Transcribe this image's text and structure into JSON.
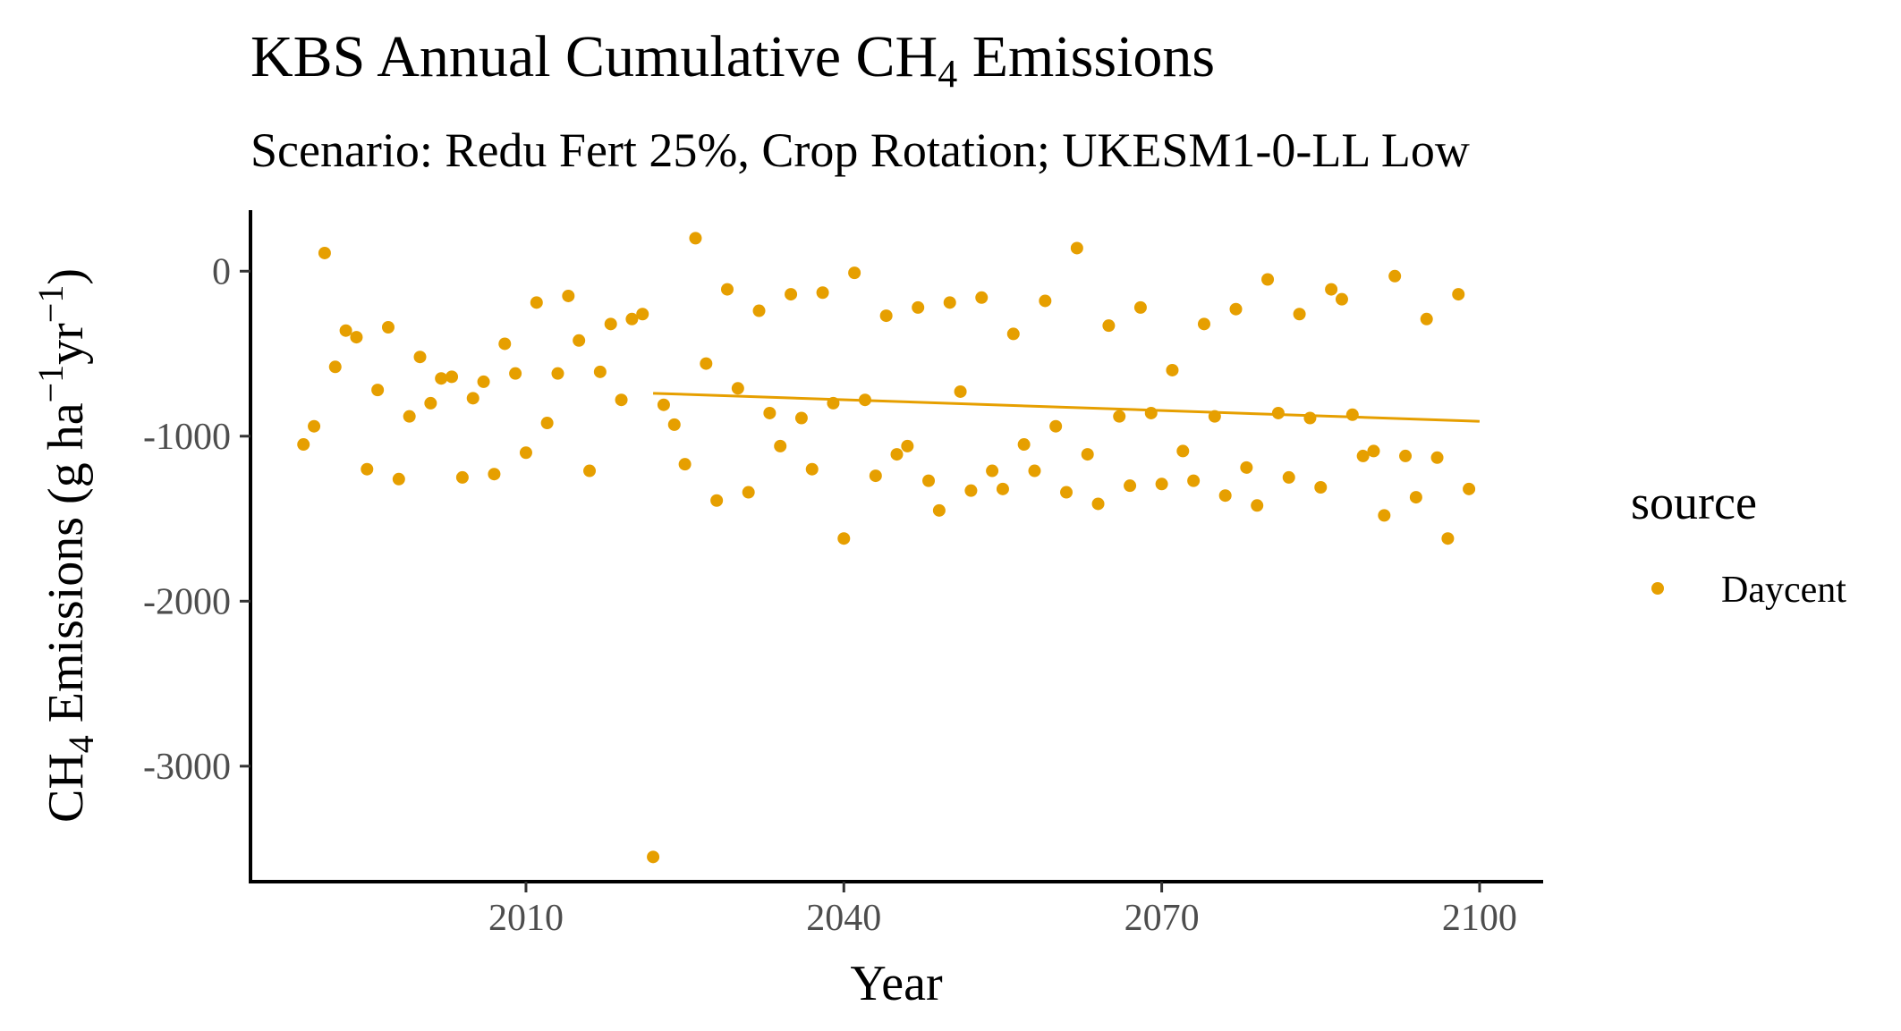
{
  "chart_data": {
    "type": "scatter",
    "title": "KBS Annual Cumulative CH",
    "title_sub": "4",
    "title_suffix": " Emissions",
    "subtitle": "Scenario: Redu Fert 25%, Crop Rotation; UKESM1-0-LL Low",
    "xlabel": "Year",
    "ylabel": {
      "ch": "CH",
      "sub4": "4",
      "mid": " Emissions (g ha",
      "sup1": "−1",
      "yr": "yr",
      "sup2": "−1",
      "close": ")"
    },
    "x_ticks": [
      2010,
      2040,
      2070,
      2100
    ],
    "y_ticks": [
      0,
      -1000,
      -2000,
      -3000
    ],
    "y_tick_labels": [
      "0",
      "-1000",
      "-2000",
      "-3000"
    ],
    "xlim": [
      1984,
      2106
    ],
    "ylim": [
      -3700,
      370
    ],
    "legend": {
      "title": "source",
      "placement": "right",
      "items": [
        {
          "label": "Daycent",
          "color": "#E69F00"
        }
      ]
    },
    "series": [
      {
        "name": "Daycent",
        "color": "#E69F00",
        "x": [
          1989,
          1990,
          1991,
          1992,
          1993,
          1994,
          1995,
          1996,
          1997,
          1998,
          1999,
          2000,
          2001,
          2002,
          2003,
          2004,
          2005,
          2006,
          2007,
          2008,
          2009,
          2010,
          2011,
          2012,
          2013,
          2014,
          2015,
          2016,
          2017,
          2018,
          2019,
          2020,
          2021,
          2022,
          2023,
          2024,
          2025,
          2026,
          2027,
          2028,
          2029,
          2030,
          2031,
          2032,
          2033,
          2034,
          2035,
          2036,
          2037,
          2038,
          2039,
          2040,
          2041,
          2042,
          2043,
          2044,
          2045,
          2046,
          2047,
          2048,
          2049,
          2050,
          2051,
          2052,
          2053,
          2054,
          2055,
          2056,
          2057,
          2058,
          2059,
          2060,
          2061,
          2062,
          2063,
          2064,
          2065,
          2066,
          2067,
          2068,
          2069,
          2070,
          2071,
          2072,
          2073,
          2074,
          2075,
          2076,
          2077,
          2078,
          2079,
          2080,
          2081,
          2082,
          2083,
          2084,
          2085,
          2086,
          2087,
          2088,
          2089,
          2090,
          2091,
          2092,
          2093,
          2094,
          2095,
          2096,
          2097,
          2098,
          2099
        ],
        "y": [
          -1050,
          -940,
          110,
          -580,
          -360,
          -400,
          -1200,
          -720,
          -340,
          -1260,
          -880,
          -520,
          -800,
          -650,
          -640,
          -1250,
          -770,
          -670,
          -1230,
          -440,
          -620,
          -1100,
          -190,
          -920,
          -620,
          -150,
          -420,
          -1210,
          -610,
          -320,
          -780,
          -290,
          -260,
          -3550,
          -810,
          -930,
          -1170,
          200,
          -560,
          -1390,
          -110,
          -710,
          -1340,
          -240,
          -860,
          -1060,
          -140,
          -890,
          -1200,
          -130,
          -800,
          -1620,
          -10,
          -780,
          -1240,
          -270,
          -1110,
          -1060,
          -220,
          -1270,
          -1450,
          -190,
          -730,
          -1330,
          -160,
          -1210,
          -1320,
          -380,
          -1050,
          -1210,
          -180,
          -940,
          -1340,
          140,
          -1110,
          -1410,
          -330,
          -880,
          -1300,
          -220,
          -860,
          -1290,
          -600,
          -1090,
          -1270,
          -320,
          -880,
          -1360,
          -230,
          -1190,
          -1420,
          -50,
          -860,
          -1250,
          -260,
          -890,
          -1310,
          -110,
          -170,
          -870,
          -1120,
          -1090,
          -1480,
          -30,
          -1120,
          -1370,
          -290,
          -1130,
          -1620,
          -140,
          -1320
        ]
      }
    ],
    "trend": {
      "x": [
        2022,
        2100
      ],
      "y": [
        -740,
        -910
      ]
    }
  }
}
